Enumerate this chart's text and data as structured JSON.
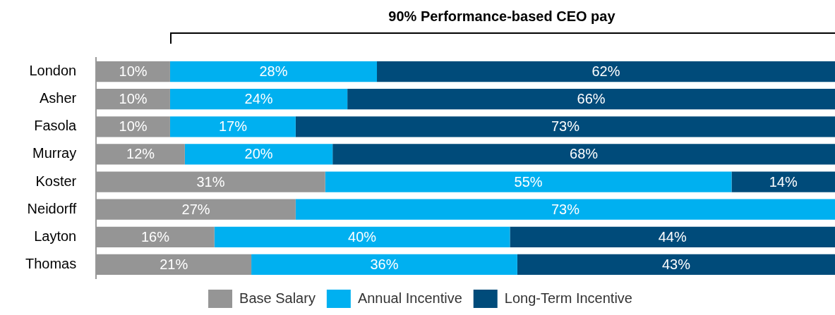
{
  "chart_data": {
    "type": "bar",
    "orientation": "horizontal",
    "stacked": true,
    "annotations": [
      "90% Performance-based CEO pay"
    ],
    "categories": [
      "London",
      "Asher",
      "Fasola",
      "Murray",
      "Koster",
      "Neidorff",
      "Layton",
      "Thomas"
    ],
    "series": [
      {
        "name": "Base Salary",
        "color": "#959595",
        "values": [
          10,
          10,
          10,
          12,
          31,
          27,
          16,
          21
        ],
        "value_labels": [
          "10%",
          "10%",
          "10%",
          "12%",
          "31%",
          "27%",
          "16%",
          "21%"
        ]
      },
      {
        "name": "Annual Incentive",
        "color": "#00b0f0",
        "values": [
          28,
          24,
          17,
          20,
          55,
          73,
          40,
          36
        ],
        "value_labels": [
          "28%",
          "24%",
          "17%",
          "20%",
          "55%",
          "73%",
          "40%",
          "36%"
        ]
      },
      {
        "name": "Long-Term Incentive",
        "color": "#004b7a",
        "values": [
          62,
          66,
          73,
          68,
          14,
          null,
          44,
          43
        ],
        "value_labels": [
          "62%",
          "66%",
          "73%",
          "68%",
          "14%",
          null,
          "44%",
          "43%"
        ]
      }
    ],
    "xlim": [
      0,
      100
    ],
    "tick_labels": "y",
    "grid": false,
    "legend": "bottom"
  }
}
